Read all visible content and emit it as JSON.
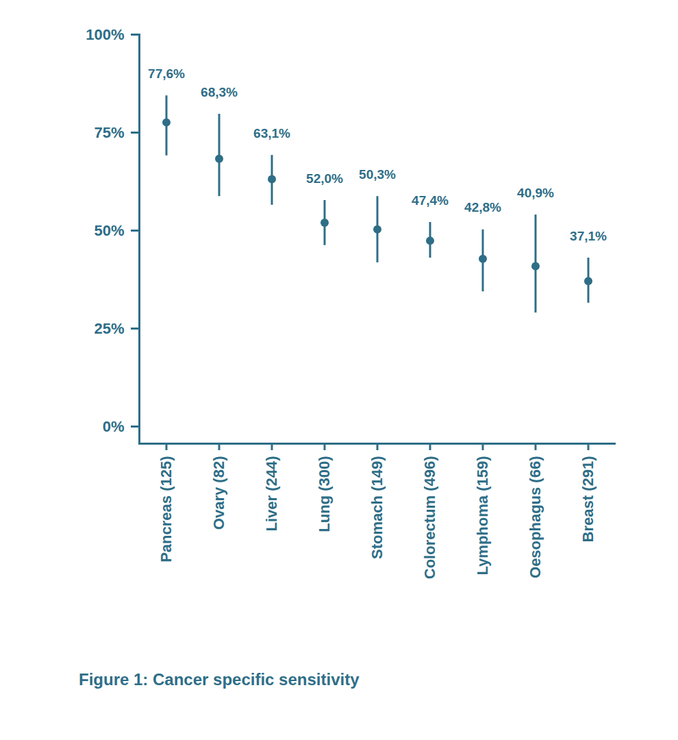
{
  "chart_data": {
    "type": "errorbar",
    "caption": "Figure 1: Cancer specific sensitivity",
    "categories": [
      "Pancreas (125)",
      "Ovary (82)",
      "Liver (244)",
      "Lung (300)",
      "Stomach (149)",
      "Colorectum (496)",
      "Lymphoma (159)",
      "Oesophagus (66)",
      "Breast (291)"
    ],
    "values": [
      77.6,
      68.3,
      63.1,
      52.0,
      50.3,
      47.4,
      42.8,
      40.9,
      37.1
    ],
    "value_labels": [
      "77,6%",
      "68,3%",
      "63,1%",
      "52,0%",
      "50,3%",
      "47,4%",
      "42,8%",
      "40,9%",
      "37,1%"
    ],
    "lower": [
      69.1,
      58.7,
      56.5,
      46.2,
      41.8,
      43.0,
      34.4,
      29.0,
      31.5
    ],
    "upper": [
      84.4,
      79.7,
      69.2,
      57.7,
      58.7,
      52.1,
      50.2,
      54.0,
      43.0
    ],
    "color": "#2e6e87",
    "ylim": [
      0,
      100
    ],
    "yticks": [
      {
        "value": 0,
        "label": "0%"
      },
      {
        "value": 25,
        "label": "25%"
      },
      {
        "value": 50,
        "label": "50%"
      },
      {
        "value": 75,
        "label": "75%"
      },
      {
        "value": 100,
        "label": "100%"
      }
    ],
    "grid": false,
    "data_labels": true
  }
}
